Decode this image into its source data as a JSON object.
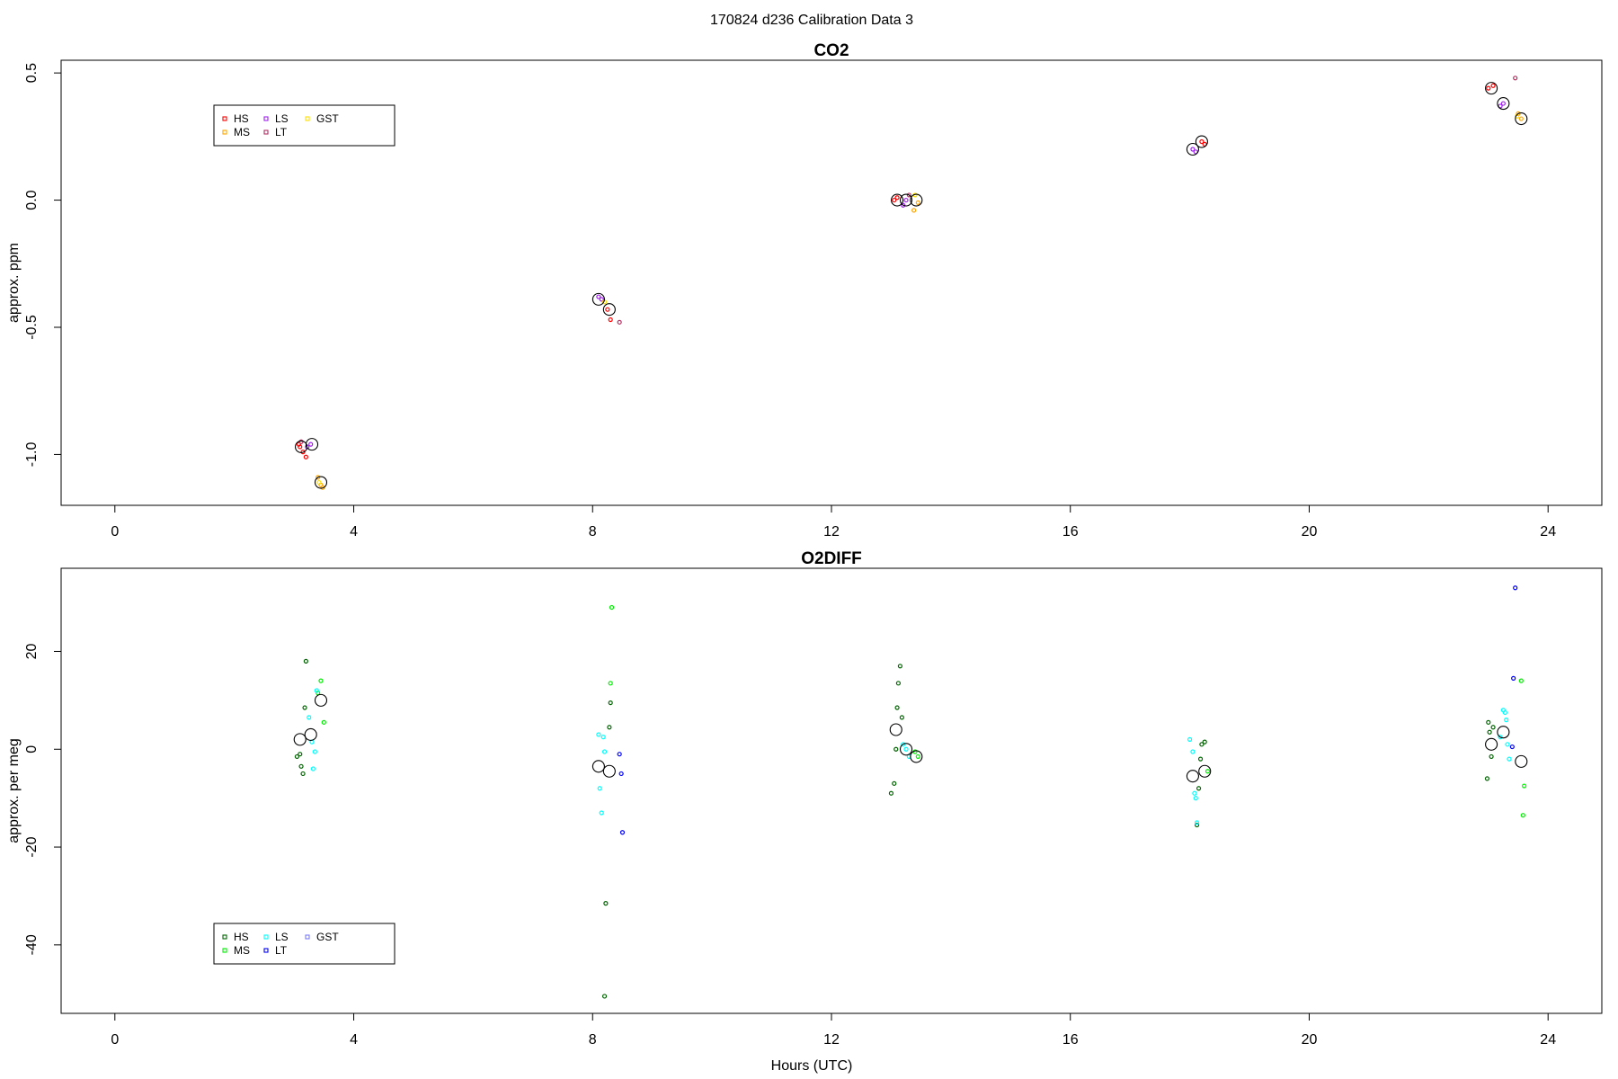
{
  "page": {
    "title": "170824   d236   Calibration Data 3",
    "xlabel": "Hours (UTC)"
  },
  "chart_data": [
    {
      "type": "scatter",
      "title": "CO2",
      "xlabel": "",
      "ylabel": "approx. ppm",
      "xlim": [
        -0.9,
        24.9
      ],
      "ylim": [
        -1.2,
        0.55
      ],
      "xticks": [
        "0",
        "4",
        "8",
        "12",
        "16",
        "20",
        "24"
      ],
      "yticks": [
        "-1.0",
        "-0.5",
        "0.0",
        "0.5"
      ],
      "legend_position": "top-left",
      "series": [
        {
          "name": "HS",
          "color": "#FF0000",
          "points": [
            [
              3.08,
              -0.96
            ],
            [
              3.15,
              -0.99
            ],
            [
              3.2,
              -1.01
            ],
            [
              3.1,
              -0.97
            ],
            [
              13.05,
              0.0
            ],
            [
              13.1,
              0.01
            ],
            [
              18.2,
              0.23
            ],
            [
              18.25,
              0.22
            ],
            [
              23.0,
              0.44
            ],
            [
              23.08,
              0.45
            ],
            [
              8.25,
              -0.43
            ],
            [
              8.3,
              -0.47
            ]
          ]
        },
        {
          "name": "MS",
          "color": "#FFA500",
          "points": [
            [
              3.4,
              -1.09
            ],
            [
              3.45,
              -1.12
            ],
            [
              3.48,
              -1.13
            ],
            [
              13.45,
              -0.01
            ],
            [
              13.38,
              -0.04
            ],
            [
              23.55,
              0.32
            ],
            [
              23.5,
              0.34
            ]
          ]
        },
        {
          "name": "LS",
          "color": "#A020F0",
          "points": [
            [
              3.28,
              -0.96
            ],
            [
              3.22,
              -0.97
            ],
            [
              8.15,
              -0.39
            ],
            [
              8.1,
              -0.38
            ],
            [
              13.25,
              0.0
            ],
            [
              13.2,
              -0.02
            ],
            [
              18.05,
              0.2
            ],
            [
              18.1,
              0.19
            ],
            [
              23.25,
              0.38
            ],
            [
              23.2,
              0.37
            ]
          ]
        },
        {
          "name": "LT",
          "color": "#B03060",
          "points": [
            [
              8.45,
              -0.48
            ],
            [
              23.45,
              0.48
            ],
            [
              13.3,
              0.02
            ],
            [
              3.12,
              -0.95
            ]
          ]
        },
        {
          "name": "GST",
          "color": "#FFE000",
          "points": [
            [
              3.42,
              -1.11
            ],
            [
              13.4,
              0.02
            ],
            [
              23.48,
              0.33
            ],
            [
              8.2,
              -0.4
            ]
          ]
        }
      ],
      "averages": [
        [
          3.12,
          -0.97
        ],
        [
          3.3,
          -0.96
        ],
        [
          3.45,
          -1.11
        ],
        [
          8.1,
          -0.39
        ],
        [
          8.28,
          -0.43
        ],
        [
          13.1,
          0.0
        ],
        [
          13.25,
          0.0
        ],
        [
          13.42,
          0.0
        ],
        [
          18.05,
          0.2
        ],
        [
          18.2,
          0.23
        ],
        [
          23.05,
          0.44
        ],
        [
          23.25,
          0.38
        ],
        [
          23.55,
          0.32
        ]
      ]
    },
    {
      "type": "scatter",
      "title": "O2DIFF",
      "xlabel": "Hours (UTC)",
      "ylabel": "approx. per meg",
      "xlim": [
        -0.9,
        24.9
      ],
      "ylim": [
        -54,
        37
      ],
      "xticks": [
        "0",
        "4",
        "8",
        "12",
        "16",
        "20",
        "24"
      ],
      "yticks": [
        "-40",
        "-20",
        "0",
        "20"
      ],
      "legend_position": "bottom-left",
      "series": [
        {
          "name": "HS",
          "color": "#006400",
          "points": [
            [
              3.1,
              -1
            ],
            [
              3.12,
              -3.5
            ],
            [
              3.15,
              -5
            ],
            [
              3.18,
              8.5
            ],
            [
              3.2,
              18
            ],
            [
              3.05,
              -1.5
            ],
            [
              8.28,
              4.5
            ],
            [
              8.3,
              9.5
            ],
            [
              8.22,
              -31.5
            ],
            [
              8.2,
              -50.5
            ],
            [
              13.05,
              -7
            ],
            [
              13.0,
              -9
            ],
            [
              13.08,
              0
            ],
            [
              13.1,
              8.5
            ],
            [
              13.12,
              13.5
            ],
            [
              13.15,
              17
            ],
            [
              13.18,
              6.5
            ],
            [
              18.2,
              1
            ],
            [
              18.25,
              1.5
            ],
            [
              18.18,
              -2
            ],
            [
              18.15,
              -8
            ],
            [
              18.12,
              -15.5
            ],
            [
              23.0,
              5.5
            ],
            [
              23.05,
              -1.5
            ],
            [
              22.98,
              -6
            ],
            [
              23.02,
              3.5
            ],
            [
              23.08,
              4.5
            ]
          ]
        },
        {
          "name": "MS",
          "color": "#00EE00",
          "points": [
            [
              3.45,
              14
            ],
            [
              3.5,
              5.5
            ],
            [
              3.4,
              11.5
            ],
            [
              8.3,
              13.5
            ],
            [
              8.32,
              29
            ],
            [
              13.45,
              -1.5
            ],
            [
              13.4,
              -0.5
            ],
            [
              18.3,
              -4.5
            ],
            [
              23.55,
              14
            ],
            [
              23.6,
              -7.5
            ],
            [
              23.58,
              -13.5
            ]
          ]
        },
        {
          "name": "LS",
          "color": "#00FFFF",
          "points": [
            [
              3.25,
              6.5
            ],
            [
              3.3,
              1.5
            ],
            [
              3.32,
              -4
            ],
            [
              3.35,
              -0.5
            ],
            [
              3.38,
              12
            ],
            [
              8.1,
              3
            ],
            [
              8.12,
              -8
            ],
            [
              8.15,
              -13
            ],
            [
              8.18,
              2.5
            ],
            [
              8.2,
              -0.5
            ],
            [
              13.25,
              0
            ],
            [
              13.3,
              -1.5
            ],
            [
              13.2,
              1
            ],
            [
              18.0,
              2
            ],
            [
              18.05,
              -0.5
            ],
            [
              18.08,
              -9
            ],
            [
              18.1,
              -10
            ],
            [
              18.12,
              -15
            ],
            [
              23.25,
              8
            ],
            [
              23.3,
              6
            ],
            [
              23.35,
              -2
            ],
            [
              23.32,
              1
            ],
            [
              23.28,
              7.5
            ],
            [
              23.2,
              2.5
            ]
          ]
        },
        {
          "name": "LT",
          "color": "#0000FF",
          "points": [
            [
              8.45,
              -1
            ],
            [
              8.48,
              -5
            ],
            [
              8.5,
              -17
            ],
            [
              23.45,
              33
            ],
            [
              23.42,
              14.5
            ],
            [
              23.4,
              0.5
            ]
          ]
        },
        {
          "name": "GST",
          "color": "#7A7AFF",
          "points": []
        }
      ],
      "averages": [
        [
          3.1,
          2
        ],
        [
          3.28,
          3
        ],
        [
          3.45,
          10
        ],
        [
          8.1,
          -3.5
        ],
        [
          8.28,
          -4.5
        ],
        [
          13.08,
          4
        ],
        [
          13.25,
          0
        ],
        [
          13.42,
          -1.5
        ],
        [
          18.05,
          -5.5
        ],
        [
          18.25,
          -4.5
        ],
        [
          23.05,
          1
        ],
        [
          23.25,
          3.5
        ],
        [
          23.55,
          -2.5
        ]
      ]
    }
  ]
}
